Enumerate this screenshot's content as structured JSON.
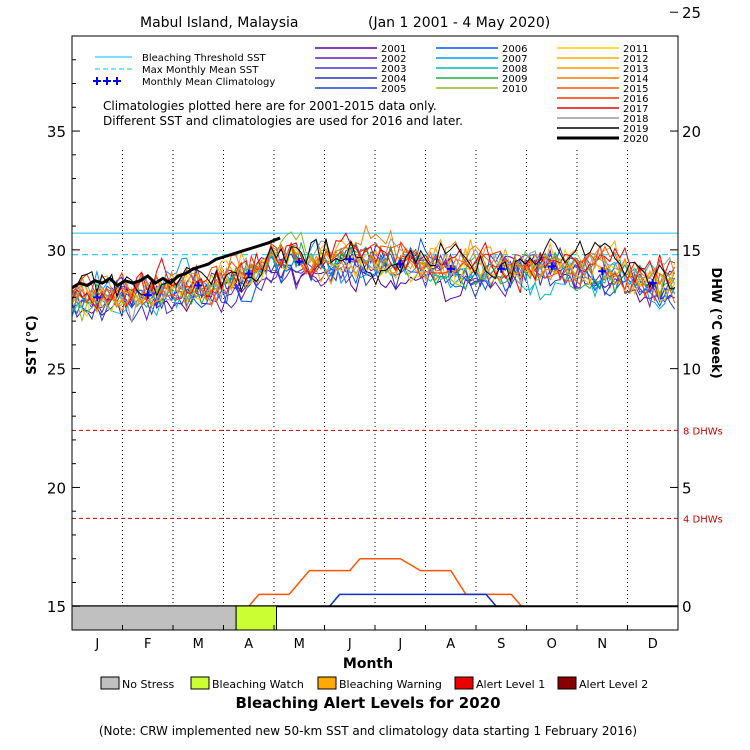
{
  "title": {
    "location": "Mabul Island, Malaysia",
    "range": "(Jan 1 2001 - 4 May 2020)"
  },
  "legend_lines": [
    {
      "label": "Bleaching Threshold SST",
      "color": "#33ccff",
      "style": "solid"
    },
    {
      "label": "Max Monthly Mean SST",
      "color": "#33ccff",
      "style": "dashed"
    },
    {
      "label": "Monthly Mean Climatology",
      "color": "#0000ff",
      "style": "plus"
    }
  ],
  "notes": [
    "Climatologies plotted here are for 2001-2015 data only.",
    "Different SST and climatologies are used for 2016 and later."
  ],
  "years": [
    {
      "label": "2001",
      "color": "#5500aa"
    },
    {
      "label": "2002",
      "color": "#6a1bc2"
    },
    {
      "label": "2003",
      "color": "#4b2fd6"
    },
    {
      "label": "2004",
      "color": "#2a33b8"
    },
    {
      "label": "2005",
      "color": "#1f3fd0"
    },
    {
      "label": "2006",
      "color": "#0055ff"
    },
    {
      "label": "2007",
      "color": "#0099ff"
    },
    {
      "label": "2008",
      "color": "#00bbbb"
    },
    {
      "label": "2009",
      "color": "#22aa44"
    },
    {
      "label": "2010",
      "color": "#88bb22"
    },
    {
      "label": "2011",
      "color": "#ffcc00"
    },
    {
      "label": "2012",
      "color": "#ffaa00"
    },
    {
      "label": "2013",
      "color": "#ff9900"
    },
    {
      "label": "2014",
      "color": "#ff7700"
    },
    {
      "label": "2015",
      "color": "#ff5500"
    },
    {
      "label": "2016",
      "color": "#ff3300"
    },
    {
      "label": "2017",
      "color": "#ee0000"
    },
    {
      "label": "2018",
      "color": "#999999"
    },
    {
      "label": "2019",
      "color": "#000000"
    },
    {
      "label": "2020",
      "color": "#000000"
    }
  ],
  "chart_data": {
    "type": "line",
    "x_unit": "month",
    "ylabel": "SST (°C)",
    "y2label": "DHW (°C week)",
    "xlabel": "Month",
    "ylim": [
      14,
      39
    ],
    "y2lim": [
      -1,
      24
    ],
    "yticks": [
      "15",
      "20",
      "25",
      "30",
      "35"
    ],
    "y2ticks": [
      "0",
      "5",
      "10",
      "15",
      "20",
      "25"
    ],
    "y2tick_values": [
      0,
      5,
      10,
      15,
      20,
      25
    ],
    "months": [
      "J",
      "F",
      "M",
      "A",
      "M",
      "J",
      "J",
      "A",
      "S",
      "O",
      "N",
      "D"
    ],
    "bleaching_threshold_sst": 30.7,
    "max_monthly_mean_sst": 29.8,
    "dhw_reference_lines": [
      {
        "dhw": 8,
        "label": "8 DHWs",
        "sst_equiv": 22.4,
        "color": "#cc0000"
      },
      {
        "dhw": 4,
        "label": "4 DHWs",
        "sst_equiv": 18.7,
        "color": "#cc0000"
      }
    ],
    "climatology": [
      28.0,
      28.1,
      28.5,
      29.0,
      29.5,
      29.6,
      29.4,
      29.2,
      29.2,
      29.3,
      29.1,
      28.6
    ],
    "sst_2020": [
      [
        0.0,
        28.4
      ],
      [
        0.15,
        28.6
      ],
      [
        0.3,
        28.5
      ],
      [
        0.45,
        28.7
      ],
      [
        0.6,
        28.6
      ],
      [
        0.75,
        28.8
      ],
      [
        0.9,
        28.5
      ],
      [
        1.05,
        28.7
      ],
      [
        1.2,
        28.6
      ],
      [
        1.35,
        28.7
      ],
      [
        1.5,
        28.9
      ],
      [
        1.65,
        28.6
      ],
      [
        1.8,
        28.8
      ],
      [
        1.95,
        28.6
      ],
      [
        2.1,
        28.9
      ],
      [
        2.25,
        29.0
      ],
      [
        2.4,
        29.2
      ],
      [
        2.55,
        29.3
      ],
      [
        2.7,
        29.4
      ],
      [
        2.85,
        29.6
      ],
      [
        3.0,
        29.7
      ],
      [
        3.15,
        29.8
      ],
      [
        3.3,
        29.9
      ],
      [
        3.45,
        30.0
      ],
      [
        3.6,
        30.1
      ],
      [
        3.75,
        30.2
      ],
      [
        3.9,
        30.3
      ],
      [
        4.0,
        30.4
      ],
      [
        4.12,
        30.5
      ]
    ],
    "dhw_2019": [
      [
        0,
        0
      ],
      [
        3.5,
        0
      ],
      [
        3.7,
        0.5
      ],
      [
        4.3,
        0.5
      ],
      [
        4.7,
        1.5
      ],
      [
        5.5,
        1.5
      ],
      [
        5.7,
        2.0
      ],
      [
        6.5,
        2.0
      ],
      [
        6.9,
        1.5
      ],
      [
        7.5,
        1.5
      ],
      [
        7.8,
        0.5
      ],
      [
        8.7,
        0.5
      ],
      [
        8.9,
        0
      ],
      [
        12,
        0
      ]
    ],
    "dhw_2020_like": [
      [
        0,
        0
      ],
      [
        5.1,
        0
      ],
      [
        5.3,
        0.5
      ],
      [
        8.2,
        0.5
      ],
      [
        8.4,
        0
      ],
      [
        12,
        0
      ]
    ]
  },
  "alert_bar": [
    {
      "status": "No Stress",
      "from": 0,
      "to": 3.25,
      "color": "#c0c0c0"
    },
    {
      "status": "Bleaching Watch",
      "from": 3.25,
      "to": 4.05,
      "color": "#ccff33"
    }
  ],
  "alert_legend": [
    {
      "label": "No Stress",
      "color": "#c0c0c0"
    },
    {
      "label": "Bleaching Watch",
      "color": "#ccff33"
    },
    {
      "label": "Bleaching Warning",
      "color": "#ffaa00"
    },
    {
      "label": "Alert Level 1",
      "color": "#ee0000"
    },
    {
      "label": "Alert Level 2",
      "color": "#880000"
    }
  ],
  "alert_title": "Bleaching Alert Levels for 2020",
  "footnote": "(Note: CRW implemented new 50-km SST and climatology data starting 1 February 2016)"
}
